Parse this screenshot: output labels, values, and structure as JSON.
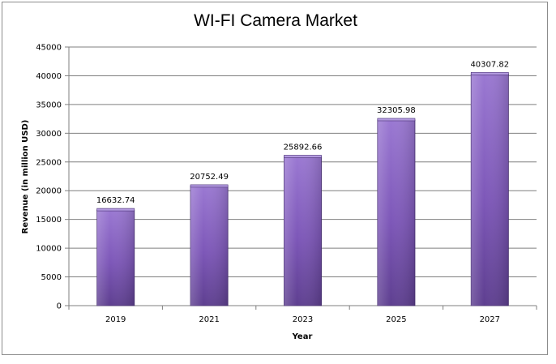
{
  "chart_data": {
    "type": "bar",
    "title": "WI-FI Camera Market",
    "xlabel": "Year",
    "ylabel": "Revenue (in million USD)",
    "categories": [
      "2019",
      "2021",
      "2023",
      "2025",
      "2027"
    ],
    "values": [
      16632.74,
      20752.49,
      25892.66,
      32305.98,
      40307.82
    ],
    "data_labels": [
      "16632.74",
      "20752.49",
      "25892.66",
      "32305.98",
      "40307.82"
    ],
    "ylim": [
      0,
      45000
    ],
    "yticks": [
      0,
      5000,
      10000,
      15000,
      20000,
      25000,
      30000,
      35000,
      40000,
      45000
    ],
    "grid": true,
    "legend": "none",
    "bar_color": "#8a63c4"
  }
}
